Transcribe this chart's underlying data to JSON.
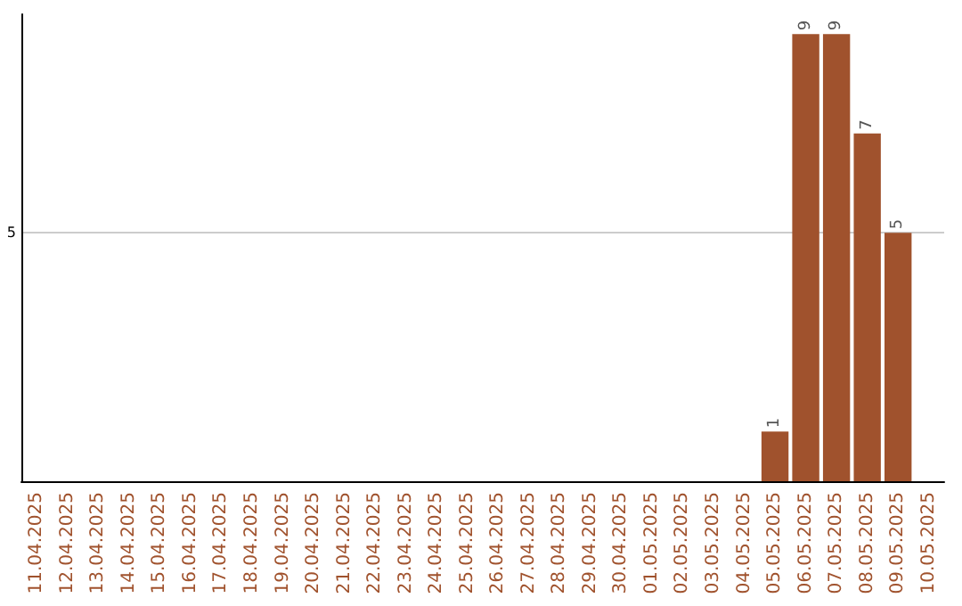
{
  "chart_data": {
    "type": "bar",
    "categories": [
      "11.04.2025",
      "12.04.2025",
      "13.04.2025",
      "14.04.2025",
      "15.04.2025",
      "16.04.2025",
      "17.04.2025",
      "18.04.2025",
      "19.04.2025",
      "20.04.2025",
      "21.04.2025",
      "22.04.2025",
      "23.04.2025",
      "24.04.2025",
      "25.04.2025",
      "26.04.2025",
      "27.04.2025",
      "28.04.2025",
      "29.04.2025",
      "30.04.2025",
      "01.05.2025",
      "02.05.2025",
      "03.05.2025",
      "04.05.2025",
      "05.05.2025",
      "06.05.2025",
      "07.05.2025",
      "08.05.2025",
      "09.05.2025",
      "10.05.2025"
    ],
    "values": [
      null,
      null,
      null,
      null,
      null,
      null,
      null,
      null,
      null,
      null,
      null,
      null,
      null,
      null,
      null,
      null,
      null,
      null,
      null,
      null,
      null,
      null,
      null,
      null,
      1,
      9,
      9,
      7,
      5,
      null
    ],
    "color": "#a0522d",
    "ylim": [
      0,
      9.4
    ],
    "yticks": [
      5
    ],
    "grid": "y",
    "data_labels": true
  }
}
